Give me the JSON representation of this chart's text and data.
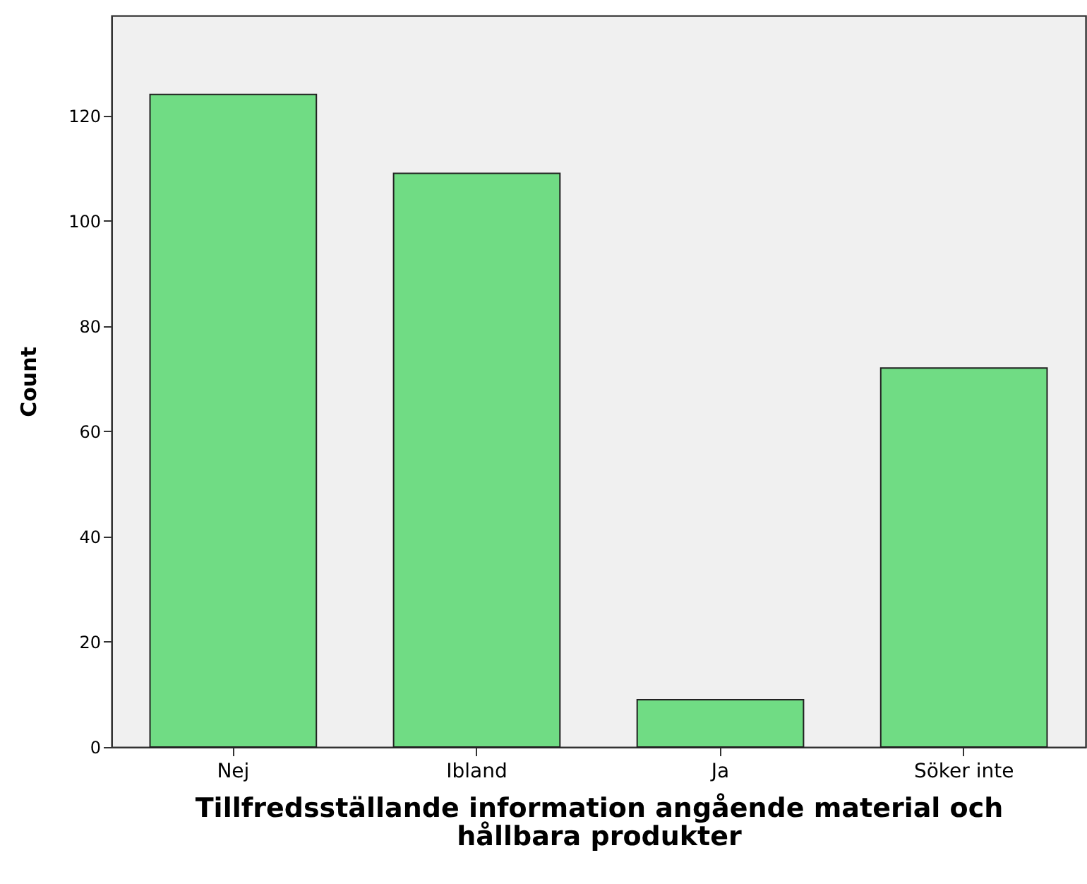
{
  "chart_data": {
    "type": "bar",
    "xlabel": "Tillfredsställande information angående material och hållbara produkter",
    "ylabel": "Count",
    "categories": [
      "Nej",
      "Ibland",
      "Ja",
      "Söker inte"
    ],
    "values": [
      124,
      109,
      9,
      72
    ],
    "color": "#70dc84",
    "ylim": [
      0,
      139
    ],
    "yticks": [
      0,
      20,
      40,
      60,
      80,
      100,
      120
    ],
    "grid": false
  }
}
